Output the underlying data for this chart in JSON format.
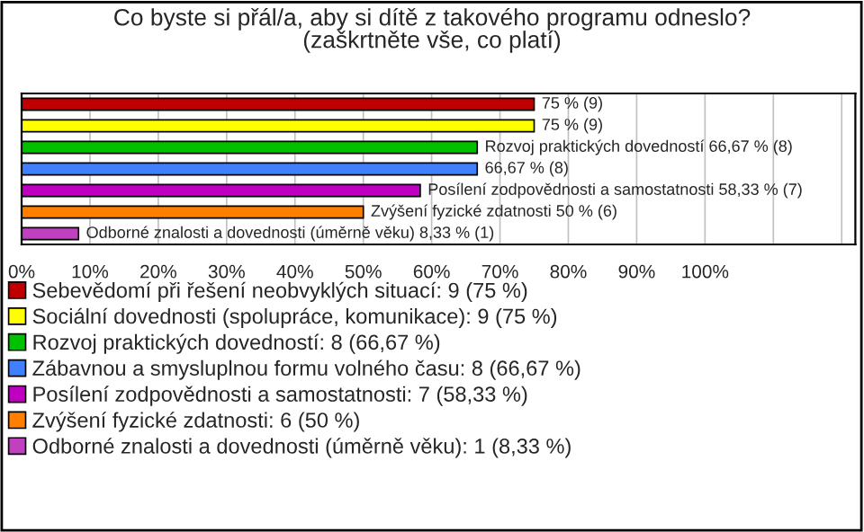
{
  "chart_data": {
    "type": "bar",
    "orientation": "horizontal",
    "title": "Co byste si přál/a, aby si dítě z takového programu odneslo?\n(zaškrtněte vše, co platí)",
    "categories": [
      null,
      null,
      null,
      null,
      null,
      null,
      null
    ],
    "series": [
      {
        "name": "Sebevědomí při řešení neobvyklých situací: 9 (75 %)",
        "color": "#c00000",
        "values": [
          75,
          null,
          null,
          null,
          null,
          null,
          null
        ],
        "value_labels": [
          "75 % (9)",
          null,
          null,
          null,
          null,
          null,
          null
        ]
      },
      {
        "name": "Sociální dovednosti (spolupráce, komunikace): 9 (75 %)",
        "color": "#ffff00",
        "values": [
          null,
          75,
          null,
          null,
          null,
          null,
          null
        ],
        "value_labels": [
          null,
          "75 % (9)",
          null,
          null,
          null,
          null,
          null
        ]
      },
      {
        "name": "Rozvoj praktických dovedností: 8 (66,67 %)",
        "color": "#00c000",
        "values": [
          null,
          null,
          66.67,
          null,
          null,
          null,
          null
        ],
        "value_labels": [
          null,
          null,
          "Rozvoj praktických dovedností 66,67 % (8)",
          null,
          null,
          null,
          null
        ]
      },
      {
        "name": "Zábavnou a smysluplnou formu volného času: 8 (66,67 %)",
        "color": "#4080ff",
        "values": [
          null,
          null,
          null,
          66.67,
          null,
          null,
          null
        ],
        "value_labels": [
          null,
          null,
          null,
          "66,67 % (8)",
          null,
          null,
          null
        ]
      },
      {
        "name": "Posílení zodpovědnosti a samostatnosti: 7 (58,33 %)",
        "color": "#c000c0",
        "values": [
          null,
          null,
          null,
          null,
          58.33,
          null,
          null
        ],
        "value_labels": [
          null,
          null,
          null,
          null,
          "Posílení zodpovědnosti a samostatnosti 58,33 % (7)",
          null,
          null
        ]
      },
      {
        "name": "Zvýšení fyzické zdatnosti: 6 (50 %)",
        "color": "#ff8000",
        "values": [
          null,
          null,
          null,
          null,
          null,
          50,
          null
        ],
        "value_labels": [
          null,
          null,
          null,
          null,
          null,
          "Zvýšení fyzické zdatnosti 50 % (6)",
          null
        ]
      },
      {
        "name": "Odborné znalosti a dovednosti (úměrně věku): 1 (8,33 %)",
        "color": "#c040c0",
        "values": [
          null,
          null,
          null,
          null,
          null,
          null,
          8.33
        ],
        "value_labels": [
          null,
          null,
          null,
          null,
          null,
          null,
          "Odborné znalosti a dovednosti (úměrně věku) 8,33 % (1)"
        ]
      }
    ],
    "xlim": [
      0,
      122
    ],
    "xticks": [
      {
        "value": 0,
        "label": "0%"
      },
      {
        "value": 10,
        "label": "10%"
      },
      {
        "value": 20,
        "label": "20%"
      },
      {
        "value": 30,
        "label": "30%"
      },
      {
        "value": 40,
        "label": "40%"
      },
      {
        "value": 50,
        "label": "50%"
      },
      {
        "value": 60,
        "label": "60%"
      },
      {
        "value": 70,
        "label": "70%"
      },
      {
        "value": 80,
        "label": "80%"
      },
      {
        "value": 90,
        "label": "90%"
      },
      {
        "value": 100,
        "label": "100%"
      },
      {
        "value": 110,
        "label": null
      },
      {
        "value": 120,
        "label": null
      }
    ],
    "grid": "x",
    "legend": "bottom",
    "tick_labels": "x"
  }
}
